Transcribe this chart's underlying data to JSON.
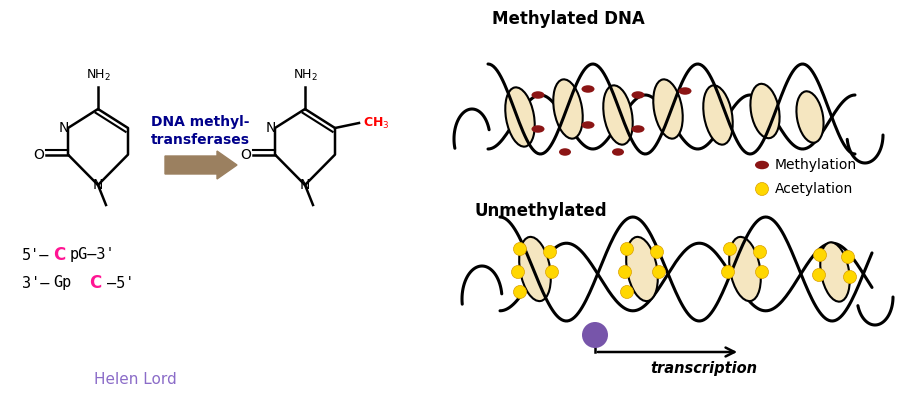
{
  "background_color": "#ffffff",
  "dna_methyl_label_line1": "DNA methyl-",
  "dna_methyl_label_line2": "transferases",
  "dna_methyl_color": "#00008B",
  "ch3_color": "#FF0000",
  "pink_color": "#FF1493",
  "methylated_title": "Methylated DNA",
  "unmethylated_title": "Unmethylated",
  "methylation_label": "Methylation",
  "acetylation_label": "Acetylation",
  "transcription_label": "transcription",
  "helen_lord_label": "Helen Lord",
  "helen_lord_color": "#8B6CC8",
  "methylation_color": "#8B1515",
  "acetylation_color": "#FFD700",
  "purple_color": "#7755AA",
  "arrow_fill_color": "#9B8060",
  "histone_fill": "#F5E6C0",
  "histone_edge": "#000000"
}
